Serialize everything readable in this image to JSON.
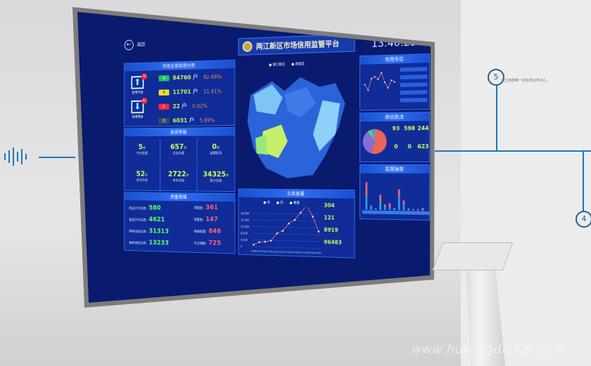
{
  "header": {
    "back_label": "返回",
    "title": "两江新区市场信用监管平台",
    "time": "13:40:25"
  },
  "credit": {
    "title": "市场主体信用分类",
    "upgrade_label": "信用升级",
    "upgrade_count": "76",
    "downgrade_label": "信用降级",
    "downgrade_count": "63",
    "grades": [
      {
        "grade": "A",
        "count": "84760",
        "unit": "户",
        "pct": "82.68%",
        "color": "#22c55e"
      },
      {
        "grade": "B",
        "count": "11701",
        "unit": "户",
        "pct": "11.41%",
        "color": "#f2e024"
      },
      {
        "grade": "C",
        "count": "22",
        "unit": "户",
        "pct": "0.02%",
        "color": "#ef2b3a"
      },
      {
        "grade": "D",
        "count": "6031",
        "unit": "户",
        "pct": "5.89%",
        "color": "#3d4b63"
      }
    ]
  },
  "complaints": {
    "title": "投诉举报",
    "unit": "件",
    "items": [
      {
        "value": "5",
        "label": "今日受理"
      },
      {
        "value": "657",
        "label": "正在办理"
      },
      {
        "value": "0",
        "label": "逾期投诉"
      },
      {
        "value": "52",
        "label": "本月办结"
      },
      {
        "value": "2722",
        "label": "本年办结"
      },
      {
        "value": "34325",
        "label": "累计办结"
      }
    ]
  },
  "quality": {
    "title": "质量管理",
    "left": [
      {
        "label": "药品许可总数:",
        "value": "580"
      },
      {
        "label": "食品许可总数:",
        "value": "4621"
      },
      {
        "label": "特种设备总数:",
        "value": "31313"
      },
      {
        "label": "抽样抽检总数:",
        "value": "13233"
      }
    ],
    "right": [
      {
        "label": "预警数:",
        "value": "361"
      },
      {
        "label": "预警数:",
        "value": "147"
      },
      {
        "label": "电梯报警:",
        "value": "846"
      },
      {
        "label": "不合格数:",
        "value": "725"
      }
    ]
  },
  "map": {
    "legend": [
      "两江新区",
      "直管区"
    ]
  },
  "development": {
    "title": "主体发展",
    "tabs": [
      "年",
      "月",
      "季度"
    ],
    "stats": [
      "304",
      "121",
      "8919",
      "96483"
    ],
    "chart_data": {
      "type": "line",
      "x": [
        "2009",
        "2010",
        "2011",
        "2012",
        "2013",
        "2014",
        "2015",
        "2016",
        "2017",
        "2018",
        "2019",
        "2020"
      ],
      "values": [
        1000,
        2500,
        2800,
        3500,
        7500,
        9000,
        13000,
        15000,
        19000,
        23000,
        17000,
        9000
      ],
      "ylim": [
        0,
        20000
      ],
      "yticks": [
        "0",
        "5,000",
        "8,000",
        "12,000",
        "15,000",
        "18,000"
      ]
    }
  },
  "credit_zone": {
    "title": "信用专区",
    "chart_data": {
      "type": "line",
      "values": [
        45,
        30,
        60,
        65,
        58,
        75,
        50,
        35,
        55,
        50
      ]
    }
  },
  "enforcement": {
    "title": "综合执法",
    "items": [
      {
        "value": "93"
      },
      {
        "value": "598"
      },
      {
        "value": "244"
      },
      {
        "value": "0"
      },
      {
        "value": "0"
      },
      {
        "value": "623"
      }
    ],
    "chart_data": {
      "type": "pie",
      "values": [
        55,
        35,
        5,
        5
      ],
      "colors": [
        "#e8655a",
        "#8a6bd6",
        "#5bd66b",
        "#3aa3e8"
      ]
    }
  },
  "inspection": {
    "title": "监督抽查",
    "chart_data": {
      "type": "bar",
      "series": [
        {
          "values": [
            40,
            4,
            2,
            22,
            8,
            10,
            3,
            30,
            14,
            3,
            2,
            2,
            4
          ]
        },
        {
          "values": [
            20,
            6,
            1,
            12,
            5,
            4,
            2,
            20,
            8,
            2,
            1,
            1,
            2
          ]
        }
      ],
      "colors": [
        "#e8647a",
        "#2e9be8"
      ]
    }
  },
  "wall": {
    "step5": "5",
    "step4": "4",
    "caption": "设立西部唯一的标准合作中心。"
  },
  "watermark": "www.hurongdianzi.com"
}
